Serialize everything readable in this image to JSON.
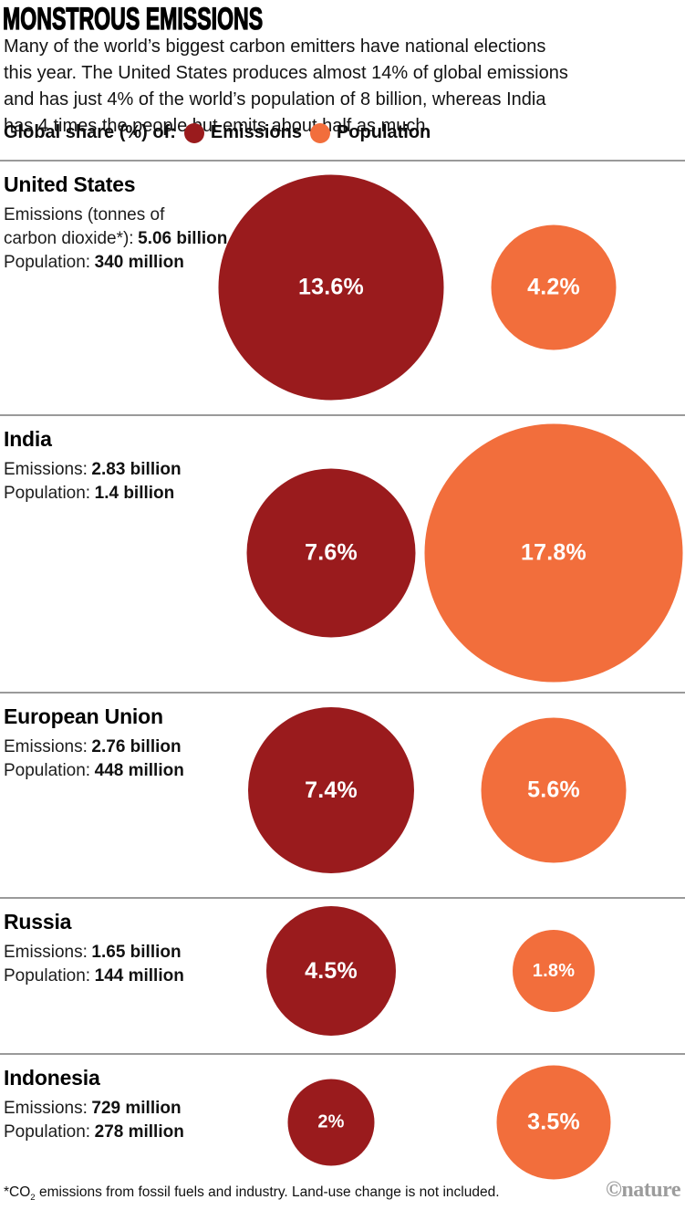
{
  "title": "MONSTROUS EMISSIONS",
  "intro_lines": [
    "Many of the world’s biggest carbon emitters have national elections",
    "this year. The United States produces almost 14% of global emissions",
    "and has just 4% of the world’s population of 8 billion, whereas India",
    "has 4 times the people but emits about half as much."
  ],
  "legend": {
    "label": "Global share (%) of:",
    "items": [
      {
        "name": "Emissions"
      },
      {
        "name": "Population"
      }
    ]
  },
  "colors": {
    "emissions": "#9A1B1D",
    "population": "#F26E3C",
    "divider": "#9A9A9A",
    "credit": "#9C9C9C"
  },
  "countries": [
    {
      "name": "United States",
      "emissions_label_line1": "Emissions (tonnes of",
      "emissions_label_line2": "carbon dioxide*):",
      "emissions_value": "5.06 billion",
      "population_label": "Population:",
      "population_value": "340 million",
      "emissions_share": {
        "label": "13.6%",
        "value": 13.6
      },
      "population_share": {
        "label": "4.2%",
        "value": 4.2
      }
    },
    {
      "name": "India",
      "emissions_label": "Emissions:",
      "emissions_value": "2.83 billion",
      "population_label": "Population:",
      "population_value": "1.4 billion",
      "emissions_share": {
        "label": "7.6%",
        "value": 7.6
      },
      "population_share": {
        "label": "17.8%",
        "value": 17.8
      }
    },
    {
      "name": "European Union",
      "emissions_label": "Emissions:",
      "emissions_value": "2.76 billion",
      "population_label": "Population:",
      "population_value": "448 million",
      "emissions_share": {
        "label": "7.4%",
        "value": 7.4
      },
      "population_share": {
        "label": "5.6%",
        "value": 5.6
      }
    },
    {
      "name": "Russia",
      "emissions_label": "Emissions:",
      "emissions_value": "1.65 billion",
      "population_label": "Population:",
      "population_value": "144 million",
      "emissions_share": {
        "label": "4.5%",
        "value": 4.5
      },
      "population_share": {
        "label": "1.8%",
        "value": 1.8
      }
    },
    {
      "name": "Indonesia",
      "emissions_label": "Emissions:",
      "emissions_value": "729 million",
      "population_label": "Population:",
      "population_value": "278 million",
      "emissions_share": {
        "label": "2%",
        "value": 2
      },
      "population_share": {
        "label": "3.5%",
        "value": 3.5
      }
    }
  ],
  "footnote": {
    "pre": "*CO",
    "sub": "2",
    "post": " emissions from fossil fuels and industry. Land-use change is not included."
  },
  "credit": "©nature",
  "chart_data": {
    "type": "bubble",
    "title": "MONSTROUS EMISSIONS",
    "units": "% of global total",
    "size_encoding": "circle area proportional to global share (%)",
    "categories": [
      "United States",
      "India",
      "European Union",
      "Russia",
      "Indonesia"
    ],
    "series": [
      {
        "name": "Emissions",
        "color": "#9A1B1D",
        "values": [
          13.6,
          7.6,
          7.4,
          4.5,
          2.0
        ]
      },
      {
        "name": "Population",
        "color": "#F26E3C",
        "values": [
          4.2,
          17.8,
          5.6,
          1.8,
          3.5
        ]
      }
    ],
    "absolute_values": [
      {
        "country": "United States",
        "emissions": "5.06 billion tonnes of carbon dioxide",
        "population": "340 million"
      },
      {
        "country": "India",
        "emissions": "2.83 billion tonnes of carbon dioxide",
        "population": "1.4 billion"
      },
      {
        "country": "European Union",
        "emissions": "2.76 billion tonnes of carbon dioxide",
        "population": "448 million"
      },
      {
        "country": "Russia",
        "emissions": "1.65 billion tonnes of carbon dioxide",
        "population": "144 million"
      },
      {
        "country": "Indonesia",
        "emissions": "729 million tonnes of carbon dioxide",
        "population": "278 million"
      }
    ]
  }
}
